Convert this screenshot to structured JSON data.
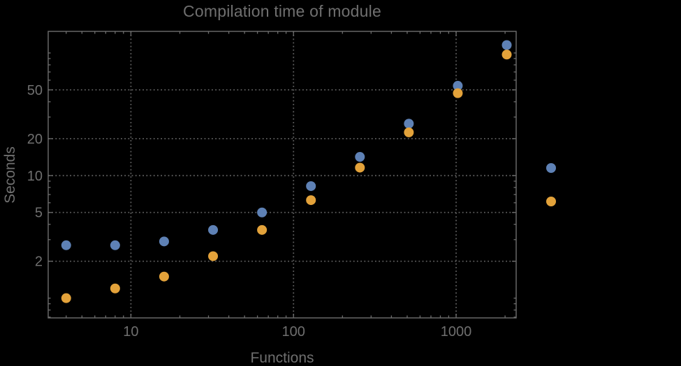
{
  "title": "Compilation time of module",
  "colors": {
    "background": "#000000",
    "frame": "#6e6e6e",
    "grid": "#5d5d5d",
    "text": "#6f6f6f",
    "series1": "#5e81b5",
    "series2": "#e3a23a"
  },
  "chart_data": {
    "type": "scatter",
    "title": "Compilation time of module",
    "xlabel": "Functions",
    "ylabel": "Seconds",
    "x_scale": "log",
    "y_scale": "log",
    "x_tick_labels": [
      10,
      100,
      1000
    ],
    "y_tick_labels": [
      2,
      5,
      10,
      20,
      50
    ],
    "x_range": [
      3.1,
      2340
    ],
    "y_range": [
      0.69,
      150
    ],
    "grid": true,
    "x": [
      4,
      8,
      16,
      32,
      64,
      128,
      256,
      512,
      1024,
      2048
    ],
    "series": [
      {
        "name": "series1",
        "color": "#5e81b5",
        "values": [
          2.7,
          2.7,
          2.9,
          3.6,
          5.0,
          8.2,
          14.2,
          26.5,
          54,
          116
        ]
      },
      {
        "name": "series2",
        "color": "#e3a23a",
        "values": [
          1.0,
          1.2,
          1.5,
          2.2,
          3.6,
          6.3,
          11.6,
          22.5,
          47,
          97
        ]
      }
    ],
    "legend": {
      "position": "outside-right",
      "labels_visible": false,
      "markers": [
        {
          "series": "series1",
          "color": "#5e81b5"
        },
        {
          "series": "series2",
          "color": "#e3a23a"
        }
      ]
    }
  }
}
